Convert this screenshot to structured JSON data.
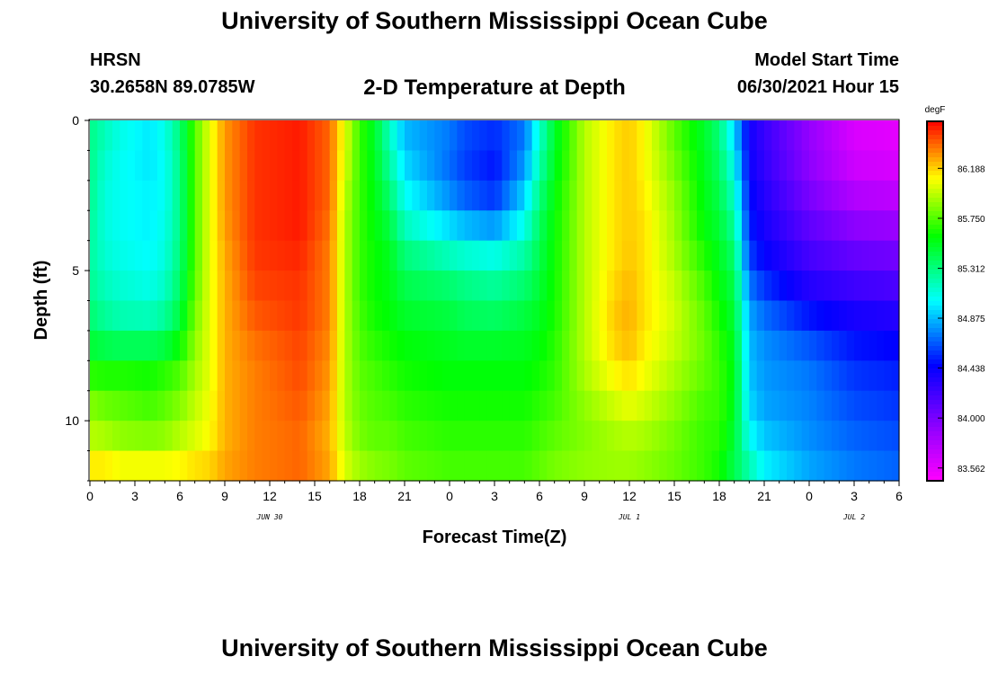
{
  "page": {
    "title_top": "University of Southern Mississippi Ocean Cube",
    "title_bottom": "University of Southern Mississippi Ocean Cube",
    "station": "HRSN",
    "coordinates": "30.2658N  89.0785W",
    "plot_title": "2-D Temperature at Depth",
    "model_start_label": "Model Start Time",
    "model_start_time": "06/30/2021 Hour 15"
  },
  "chart_data": {
    "type": "heatmap",
    "title": "2-D Temperature at Depth",
    "xlabel": "Forecast Time(Z)",
    "ylabel": "Depth (ft)",
    "x_ticks": [
      "0",
      "3",
      "6",
      "9",
      "12",
      "15",
      "18",
      "21",
      "0",
      "3",
      "6",
      "9",
      "12",
      "15",
      "18",
      "21",
      "0",
      "3",
      "6"
    ],
    "date_labels": [
      {
        "label": "JUN 30",
        "hour": 12
      },
      {
        "label": "JUL 1",
        "hour": 36
      },
      {
        "label": "JUL 2",
        "hour": 51
      }
    ],
    "x_range_hours": [
      0,
      54
    ],
    "y_ticks": [
      0,
      5,
      10
    ],
    "y_range": [
      0,
      12
    ],
    "colorbar": {
      "unit": "degF",
      "ticks": [
        "86.188",
        "85.750",
        "85.312",
        "84.875",
        "84.438",
        "84.000",
        "83.562"
      ],
      "min": 83.45,
      "max": 86.6
    },
    "depths_ft": [
      0,
      1,
      2,
      3,
      4,
      5,
      6,
      7,
      8,
      9,
      10,
      11,
      12
    ],
    "keyframes": [
      {
        "hour": 0,
        "profile": [
          85.3,
          85.3,
          85.3,
          85.28,
          85.25,
          85.25,
          85.3,
          85.4,
          85.55,
          85.8,
          85.9,
          86.0,
          86.25
        ]
      },
      {
        "hour": 1,
        "profile": [
          85.2,
          85.15,
          85.1,
          85.1,
          85.1,
          85.15,
          85.2,
          85.3,
          85.55,
          85.75,
          85.85,
          86.0,
          86.25
        ]
      },
      {
        "hour": 2,
        "profile": [
          85.1,
          85.05,
          85.05,
          85.05,
          85.05,
          85.1,
          85.15,
          85.25,
          85.55,
          85.75,
          85.8,
          85.95,
          86.2
        ]
      },
      {
        "hour": 4,
        "profile": [
          85.0,
          84.95,
          85.0,
          85.0,
          85.0,
          85.05,
          85.1,
          85.25,
          85.55,
          85.7,
          85.75,
          85.95,
          86.2
        ]
      },
      {
        "hour": 5,
        "profile": [
          85.1,
          85.05,
          85.05,
          85.05,
          85.1,
          85.1,
          85.2,
          85.3,
          85.6,
          85.75,
          85.8,
          85.95,
          86.2
        ]
      },
      {
        "hour": 6,
        "profile": [
          85.35,
          85.3,
          85.3,
          85.3,
          85.3,
          85.35,
          85.4,
          85.5,
          85.7,
          85.8,
          85.9,
          86.0,
          86.2
        ]
      },
      {
        "hour": 7,
        "profile": [
          85.75,
          85.75,
          85.75,
          85.75,
          85.75,
          85.75,
          85.8,
          85.85,
          85.9,
          85.95,
          86.0,
          86.05,
          86.25
        ]
      },
      {
        "hour": 8,
        "profile": [
          86.05,
          86.05,
          86.05,
          86.05,
          86.05,
          86.05,
          86.05,
          86.05,
          86.05,
          86.05,
          86.1,
          86.1,
          86.25
        ]
      },
      {
        "hour": 9,
        "profile": [
          86.3,
          86.3,
          86.3,
          86.3,
          86.28,
          86.25,
          86.25,
          86.25,
          86.25,
          86.25,
          86.25,
          86.25,
          86.3
        ]
      },
      {
        "hour": 11,
        "profile": [
          86.5,
          86.5,
          86.5,
          86.5,
          86.5,
          86.48,
          86.45,
          86.4,
          86.35,
          86.35,
          86.35,
          86.35,
          86.35
        ]
      },
      {
        "hour": 14,
        "profile": [
          86.55,
          86.55,
          86.55,
          86.55,
          86.55,
          86.5,
          86.5,
          86.48,
          86.45,
          86.45,
          86.4,
          86.4,
          86.4
        ]
      },
      {
        "hour": 16,
        "profile": [
          86.4,
          86.4,
          86.4,
          86.4,
          86.35,
          86.35,
          86.35,
          86.35,
          86.3,
          86.3,
          86.25,
          86.25,
          86.3
        ]
      },
      {
        "hour": 17,
        "profile": [
          86.05,
          86.05,
          86.0,
          85.95,
          85.95,
          85.95,
          85.95,
          85.95,
          85.95,
          85.95,
          85.95,
          86.0,
          86.05
        ]
      },
      {
        "hour": 18,
        "profile": [
          85.7,
          85.7,
          85.7,
          85.7,
          85.7,
          85.7,
          85.7,
          85.75,
          85.75,
          85.8,
          85.8,
          85.85,
          85.95
        ]
      },
      {
        "hour": 19,
        "profile": [
          85.5,
          85.5,
          85.55,
          85.55,
          85.6,
          85.6,
          85.6,
          85.65,
          85.7,
          85.75,
          85.75,
          85.8,
          85.9
        ]
      },
      {
        "hour": 20,
        "profile": [
          85.15,
          85.2,
          85.3,
          85.4,
          85.5,
          85.55,
          85.55,
          85.6,
          85.65,
          85.7,
          85.75,
          85.8,
          85.85
        ]
      },
      {
        "hour": 21,
        "profile": [
          84.85,
          84.9,
          85.0,
          85.1,
          85.25,
          85.4,
          85.45,
          85.55,
          85.6,
          85.65,
          85.7,
          85.75,
          85.8
        ]
      },
      {
        "hour": 24,
        "profile": [
          84.75,
          84.7,
          84.7,
          84.85,
          85.05,
          85.3,
          85.4,
          85.5,
          85.55,
          85.6,
          85.65,
          85.7,
          85.75
        ]
      },
      {
        "hour": 25,
        "profile": [
          84.65,
          84.6,
          84.6,
          84.75,
          85.0,
          85.25,
          85.35,
          85.45,
          85.55,
          85.6,
          85.65,
          85.7,
          85.75
        ]
      },
      {
        "hour": 27,
        "profile": [
          84.6,
          84.5,
          84.5,
          84.65,
          84.95,
          85.2,
          85.3,
          85.45,
          85.55,
          85.6,
          85.65,
          85.7,
          85.75
        ]
      },
      {
        "hour": 29,
        "profile": [
          84.7,
          84.75,
          84.85,
          85.0,
          85.15,
          85.3,
          85.4,
          85.5,
          85.55,
          85.6,
          85.65,
          85.7,
          85.75
        ]
      },
      {
        "hour": 30,
        "profile": [
          85.1,
          85.15,
          85.25,
          85.35,
          85.4,
          85.45,
          85.5,
          85.55,
          85.6,
          85.65,
          85.7,
          85.75,
          85.8
        ]
      },
      {
        "hour": 31,
        "profile": [
          85.5,
          85.5,
          85.55,
          85.6,
          85.6,
          85.62,
          85.62,
          85.65,
          85.68,
          85.7,
          85.75,
          85.8,
          85.85
        ]
      },
      {
        "hour": 33,
        "profile": [
          85.95,
          85.95,
          85.95,
          85.95,
          85.95,
          85.95,
          85.95,
          85.95,
          85.95,
          85.9,
          85.85,
          85.85,
          85.9
        ]
      },
      {
        "hour": 35,
        "profile": [
          86.15,
          86.15,
          86.15,
          86.15,
          86.15,
          86.15,
          86.2,
          86.2,
          86.15,
          86.05,
          85.95,
          85.9,
          85.9
        ]
      },
      {
        "hour": 36,
        "profile": [
          86.2,
          86.2,
          86.2,
          86.2,
          86.2,
          86.22,
          86.25,
          86.25,
          86.2,
          86.1,
          86.0,
          85.9,
          85.9
        ]
      },
      {
        "hour": 37,
        "profile": [
          86.1,
          86.1,
          86.1,
          86.15,
          86.15,
          86.15,
          86.15,
          86.15,
          86.1,
          86.05,
          85.95,
          85.9,
          85.85
        ]
      },
      {
        "hour": 39,
        "profile": [
          85.75,
          85.8,
          85.85,
          85.9,
          85.9,
          85.95,
          86.0,
          86.0,
          85.95,
          85.9,
          85.85,
          85.8,
          85.8
        ]
      },
      {
        "hour": 41,
        "profile": [
          85.5,
          85.5,
          85.55,
          85.55,
          85.6,
          85.7,
          85.75,
          85.8,
          85.8,
          85.75,
          85.7,
          85.7,
          85.7
        ]
      },
      {
        "hour": 42,
        "profile": [
          85.3,
          85.35,
          85.4,
          85.45,
          85.5,
          85.55,
          85.6,
          85.65,
          85.7,
          85.7,
          85.7,
          85.65,
          85.6
        ]
      },
      {
        "hour": 43,
        "profile": [
          84.9,
          85.0,
          85.1,
          85.2,
          85.3,
          85.4,
          85.45,
          85.5,
          85.55,
          85.55,
          85.5,
          85.45,
          85.4
        ]
      },
      {
        "hour": 44,
        "profile": [
          84.4,
          84.4,
          84.45,
          84.5,
          84.55,
          84.65,
          84.8,
          84.85,
          84.9,
          84.9,
          85.0,
          85.1,
          85.3
        ]
      },
      {
        "hour": 45,
        "profile": [
          84.25,
          84.25,
          84.3,
          84.35,
          84.4,
          84.5,
          84.65,
          84.75,
          84.8,
          84.8,
          84.85,
          84.95,
          85.05
        ]
      },
      {
        "hour": 48,
        "profile": [
          83.9,
          83.9,
          83.95,
          84.05,
          84.15,
          84.25,
          84.4,
          84.6,
          84.7,
          84.75,
          84.75,
          84.8,
          84.85
        ]
      },
      {
        "hour": 51,
        "profile": [
          83.6,
          83.62,
          83.7,
          83.85,
          84.0,
          84.15,
          84.3,
          84.45,
          84.55,
          84.6,
          84.65,
          84.7,
          84.75
        ]
      },
      {
        "hour": 54,
        "profile": [
          83.55,
          83.58,
          83.65,
          83.8,
          83.95,
          84.1,
          84.25,
          84.4,
          84.5,
          84.55,
          84.6,
          84.65,
          84.7
        ]
      }
    ]
  }
}
